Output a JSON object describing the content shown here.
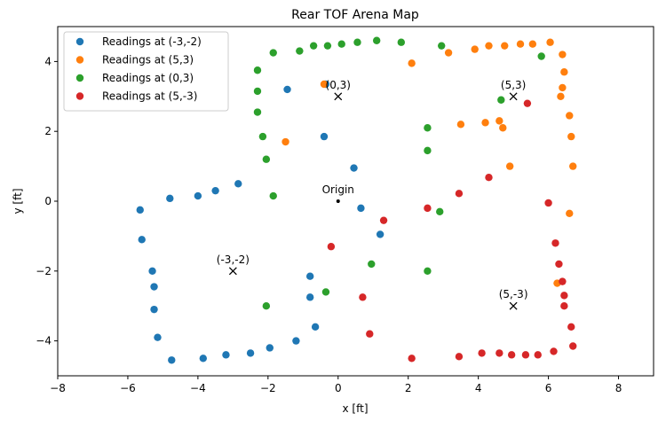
{
  "chart_data": {
    "type": "scatter",
    "title": "Rear TOF Arena Map",
    "xlabel": "x [ft]",
    "ylabel": "y [ft]",
    "xlim": [
      -8,
      9
    ],
    "ylim": [
      -5,
      5
    ],
    "xticks": [
      -8,
      -6,
      -4,
      -2,
      0,
      2,
      4,
      6,
      8
    ],
    "yticks": [
      -4,
      -2,
      0,
      2,
      4
    ],
    "grid": false,
    "legend_position": "top-left",
    "series": [
      {
        "name": "Readings at (-3,-2)",
        "color": "#1f77b4",
        "points": [
          [
            -5.65,
            -0.25
          ],
          [
            -5.6,
            -1.1
          ],
          [
            -4.8,
            0.08
          ],
          [
            -4.0,
            0.15
          ],
          [
            -3.5,
            0.3
          ],
          [
            -2.85,
            0.5
          ],
          [
            -5.3,
            -2.0
          ],
          [
            -5.25,
            -2.45
          ],
          [
            -5.25,
            -3.1
          ],
          [
            -5.15,
            -3.9
          ],
          [
            -4.75,
            -4.55
          ],
          [
            -3.85,
            -4.5
          ],
          [
            -3.2,
            -4.4
          ],
          [
            -2.5,
            -4.35
          ],
          [
            -1.95,
            -4.2
          ],
          [
            -1.2,
            -4.0
          ],
          [
            -0.65,
            -3.6
          ],
          [
            -0.8,
            -2.75
          ],
          [
            -0.8,
            -2.15
          ],
          [
            1.2,
            -0.95
          ],
          [
            0.65,
            -0.2
          ],
          [
            0.45,
            0.95
          ],
          [
            -0.4,
            1.85
          ],
          [
            -1.45,
            3.2
          ],
          [
            -0.35,
            3.35
          ]
        ]
      },
      {
        "name": "Readings at (5,3)",
        "color": "#ff7f0e",
        "points": [
          [
            2.1,
            3.95
          ],
          [
            3.15,
            4.25
          ],
          [
            3.9,
            4.35
          ],
          [
            4.3,
            4.45
          ],
          [
            4.75,
            4.45
          ],
          [
            5.2,
            4.5
          ],
          [
            5.55,
            4.5
          ],
          [
            6.05,
            4.55
          ],
          [
            6.4,
            4.2
          ],
          [
            6.45,
            3.7
          ],
          [
            6.4,
            3.25
          ],
          [
            6.35,
            3.0
          ],
          [
            6.6,
            2.45
          ],
          [
            6.65,
            1.85
          ],
          [
            6.7,
            1.0
          ],
          [
            6.6,
            -0.35
          ],
          [
            6.25,
            -2.35
          ],
          [
            4.9,
            1.0
          ],
          [
            4.7,
            2.1
          ],
          [
            4.6,
            2.3
          ],
          [
            4.2,
            2.25
          ],
          [
            3.5,
            2.2
          ],
          [
            -1.5,
            1.7
          ],
          [
            -0.4,
            3.35
          ]
        ]
      },
      {
        "name": "Readings at (0,3)",
        "color": "#2ca02c",
        "points": [
          [
            -2.3,
            3.75
          ],
          [
            -2.3,
            3.15
          ],
          [
            -2.3,
            2.55
          ],
          [
            -2.15,
            1.85
          ],
          [
            -2.05,
            1.2
          ],
          [
            -1.85,
            0.15
          ],
          [
            -1.85,
            4.25
          ],
          [
            -1.1,
            4.3
          ],
          [
            -0.7,
            4.45
          ],
          [
            -0.3,
            4.45
          ],
          [
            0.1,
            4.5
          ],
          [
            0.55,
            4.55
          ],
          [
            1.1,
            4.6
          ],
          [
            1.8,
            4.55
          ],
          [
            2.95,
            4.45
          ],
          [
            5.8,
            4.15
          ],
          [
            4.65,
            2.9
          ],
          [
            2.55,
            2.1
          ],
          [
            2.55,
            1.45
          ],
          [
            2.9,
            -0.3
          ],
          [
            2.55,
            -2.0
          ],
          [
            0.95,
            -1.8
          ],
          [
            -0.35,
            -2.6
          ],
          [
            -2.05,
            -3.0
          ]
        ]
      },
      {
        "name": "Readings at (5,-3)",
        "color": "#d62728",
        "points": [
          [
            5.4,
            2.8
          ],
          [
            4.3,
            0.68
          ],
          [
            3.45,
            0.22
          ],
          [
            2.55,
            -0.2
          ],
          [
            1.3,
            -0.55
          ],
          [
            -0.2,
            -1.3
          ],
          [
            0.7,
            -2.75
          ],
          [
            0.9,
            -3.8
          ],
          [
            2.1,
            -4.5
          ],
          [
            3.45,
            -4.45
          ],
          [
            4.1,
            -4.35
          ],
          [
            4.6,
            -4.35
          ],
          [
            4.95,
            -4.4
          ],
          [
            5.35,
            -4.4
          ],
          [
            5.7,
            -4.4
          ],
          [
            6.15,
            -4.3
          ],
          [
            6.7,
            -4.15
          ],
          [
            6.65,
            -3.6
          ],
          [
            6.45,
            -3.0
          ],
          [
            6.45,
            -2.7
          ],
          [
            6.4,
            -2.3
          ],
          [
            6.3,
            -1.8
          ],
          [
            6.2,
            -1.2
          ],
          [
            6.0,
            -0.05
          ]
        ]
      }
    ],
    "annotations": [
      {
        "label": "(0,3)",
        "x": 0,
        "y": 3,
        "marker": "x"
      },
      {
        "label": "(5,3)",
        "x": 5,
        "y": 3,
        "marker": "x"
      },
      {
        "label": "Origin",
        "x": 0,
        "y": 0,
        "marker": "dot"
      },
      {
        "label": "(-3,-2)",
        "x": -3,
        "y": -2,
        "marker": "x"
      },
      {
        "label": "(5,-3)",
        "x": 5,
        "y": -3,
        "marker": "x"
      }
    ]
  }
}
